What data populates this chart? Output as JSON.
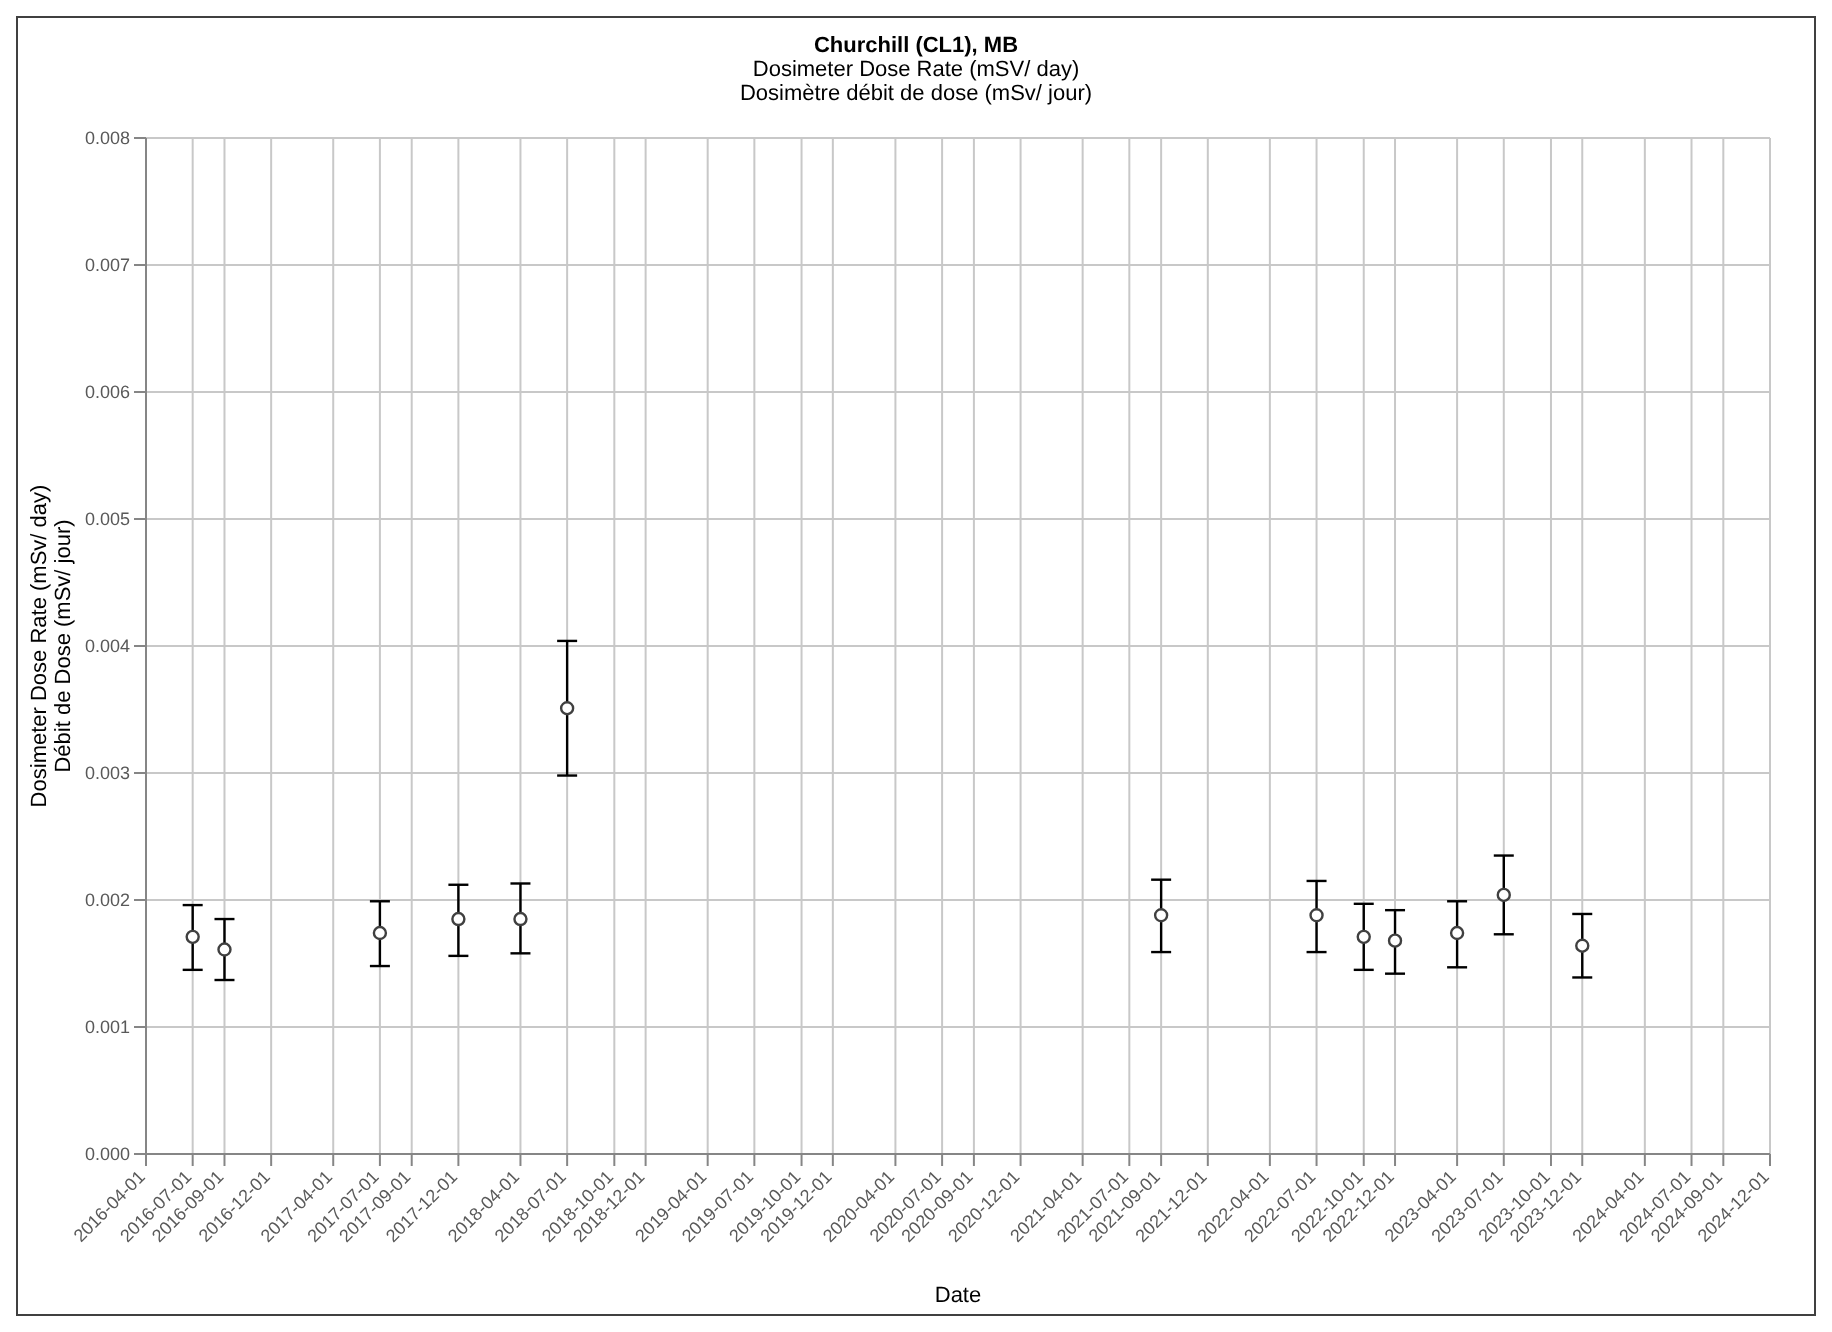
{
  "chart_data": {
    "type": "scatter",
    "title": "Churchill (CL1), MB",
    "subtitle": "Dosimeter Dose Rate (mSV/ day)\nDosimètre débit de dose (mSv/ jour)",
    "xlabel": "Date",
    "ylabel": "Dosimeter Dose Rate (mSv/ day)\nDébit de Dose (mSv/ jour)",
    "x": [
      "2016-07-01",
      "2016-09-01",
      "2017-07-01",
      "2017-12-01",
      "2018-04-01",
      "2018-07-01",
      "2021-09-01",
      "2022-07-01",
      "2022-10-01",
      "2022-12-01",
      "2023-04-01",
      "2023-07-01",
      "2023-12-01"
    ],
    "series": [
      {
        "color": "#404040",
        "values": [
          0.00171,
          0.00161,
          0.00174,
          0.00185,
          0.00185,
          0.00351,
          0.00188,
          0.00188,
          0.00171,
          0.00168,
          0.00174,
          0.00204,
          0.00164
        ],
        "errors": [
          [
            0.00145,
            0.00196
          ],
          [
            0.00137,
            0.00185
          ],
          [
            0.00148,
            0.00199
          ],
          [
            0.00156,
            0.00212
          ],
          [
            0.00158,
            0.00213
          ],
          [
            0.00298,
            0.00404
          ],
          [
            0.00159,
            0.00216
          ],
          [
            0.00159,
            0.00215
          ],
          [
            0.00145,
            0.00197
          ],
          [
            0.00142,
            0.00192
          ],
          [
            0.00147,
            0.00199
          ],
          [
            0.00173,
            0.00235
          ],
          [
            0.00139,
            0.00189
          ]
        ]
      }
    ],
    "xlim": [
      "2016-04-01",
      "2024-12-01"
    ],
    "xticks": [
      "2016-04-01",
      "2016-07-01",
      "2016-09-01",
      "2016-12-01",
      "2017-04-01",
      "2017-07-01",
      "2017-09-01",
      "2017-12-01",
      "2018-04-01",
      "2018-07-01",
      "2018-10-01",
      "2018-12-01",
      "2019-04-01",
      "2019-07-01",
      "2019-10-01",
      "2019-12-01",
      "2020-04-01",
      "2020-07-01",
      "2020-09-01",
      "2020-12-01",
      "2021-04-01",
      "2021-07-01",
      "2021-09-01",
      "2021-12-01",
      "2022-04-01",
      "2022-07-01",
      "2022-10-01",
      "2022-12-01",
      "2023-04-01",
      "2023-07-01",
      "2023-10-01",
      "2023-12-01",
      "2024-04-01",
      "2024-07-01",
      "2024-09-01",
      "2024-12-01"
    ],
    "ylim": [
      0,
      0.008
    ],
    "yticks": [
      {
        "value": 0,
        "label": "0.000"
      },
      0.001,
      0.002,
      0.003,
      0.004,
      0.005,
      0.006,
      0.007,
      0.008
    ],
    "grid": true,
    "legend": false,
    "marker": "circle"
  }
}
